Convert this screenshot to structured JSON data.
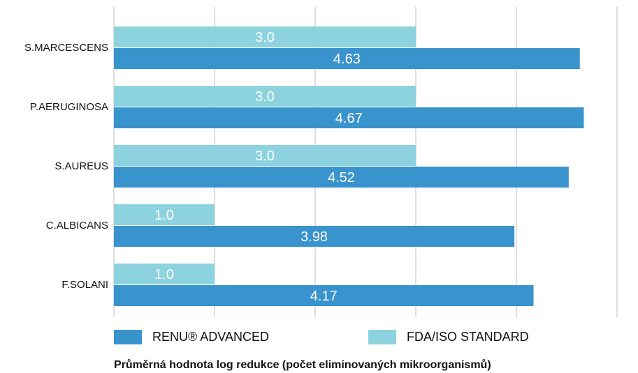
{
  "chart_data": {
    "type": "bar",
    "orientation": "horizontal",
    "categories": [
      "S.MARCESCENS",
      "P.AERUGINOSA",
      "S.AUREUS",
      "C.ALBICANS",
      "F.SOLANI"
    ],
    "series": [
      {
        "name": "RENU® ADVANCED",
        "color": "#3993cd",
        "values": [
          4.63,
          4.67,
          4.52,
          3.98,
          4.17
        ]
      },
      {
        "name": "FDA/ISO STANDARD",
        "color": "#8dd3df",
        "values": [
          3,
          3,
          3,
          1,
          1
        ],
        "value_labels": [
          "3.0",
          "3.0",
          "3.0",
          "1.0",
          "1.0"
        ]
      }
    ],
    "xlabel": "Průměrná hodnota log redukce (počet eliminovaných mikroorganismů)",
    "xlim": [
      0,
      5
    ],
    "xticks": [
      0,
      1,
      2,
      3,
      4,
      5
    ],
    "grid": true
  }
}
